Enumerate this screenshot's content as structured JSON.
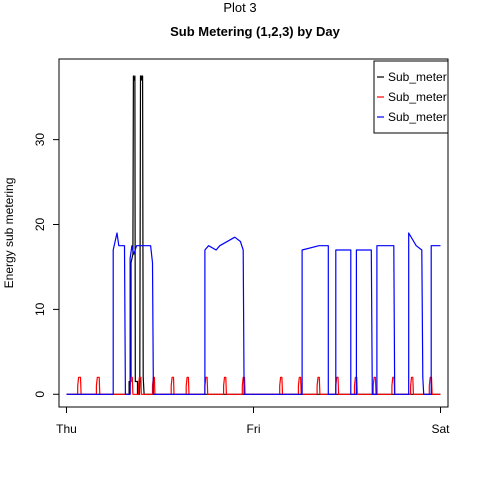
{
  "page": {
    "title": "Plot 3"
  },
  "chart_data": {
    "type": "line",
    "title": "Sub Metering (1,2,3) by Day",
    "xlabel": "",
    "ylabel": "Energy sub metering",
    "x_ticks": [
      {
        "x": 0,
        "label": "Thu"
      },
      {
        "x": 1,
        "label": "Fri"
      },
      {
        "x": 2,
        "label": "Sat"
      }
    ],
    "y_ticks": [
      0,
      10,
      20,
      30
    ],
    "xlim": [
      -0.04,
      2.04
    ],
    "ylim": [
      -1.5,
      39.5
    ],
    "grid": false,
    "legend": {
      "position": "top-right",
      "entries": [
        "Sub_meter",
        "Sub_meter",
        "Sub_meter"
      ]
    },
    "series": [
      {
        "color": "#000000",
        "points": [
          [
            0.0,
            0
          ],
          [
            0.335,
            0
          ],
          [
            0.335,
            1.5
          ],
          [
            0.345,
            1.5
          ],
          [
            0.345,
            15.5
          ],
          [
            0.355,
            16.5
          ],
          [
            0.358,
            37.5
          ],
          [
            0.362,
            37.0
          ],
          [
            0.366,
            37.5
          ],
          [
            0.368,
            1.5
          ],
          [
            0.38,
            1.5
          ],
          [
            0.38,
            0
          ],
          [
            0.39,
            0
          ],
          [
            0.392,
            1.5
          ],
          [
            0.396,
            37.5
          ],
          [
            0.4,
            37.5
          ],
          [
            0.403,
            37.0
          ],
          [
            0.407,
            37.5
          ],
          [
            0.41,
            2.0
          ],
          [
            0.415,
            0
          ],
          [
            2.0,
            0
          ]
        ]
      },
      {
        "color": "#ff0000",
        "points": [
          [
            0.0,
            0
          ],
          [
            0.06,
            0
          ],
          [
            0.06,
            1.0
          ],
          [
            0.065,
            2.0
          ],
          [
            0.075,
            2.0
          ],
          [
            0.078,
            0
          ],
          [
            0.16,
            0
          ],
          [
            0.16,
            1.0
          ],
          [
            0.165,
            2.0
          ],
          [
            0.175,
            2.0
          ],
          [
            0.178,
            0
          ],
          [
            0.34,
            0
          ],
          [
            0.34,
            1.0
          ],
          [
            0.345,
            2.0
          ],
          [
            0.352,
            2.0
          ],
          [
            0.355,
            0
          ],
          [
            0.385,
            0
          ],
          [
            0.385,
            1.0
          ],
          [
            0.39,
            2.0
          ],
          [
            0.398,
            2.0
          ],
          [
            0.4,
            0
          ],
          [
            0.46,
            0
          ],
          [
            0.46,
            1.0
          ],
          [
            0.465,
            2.0
          ],
          [
            0.47,
            2.0
          ],
          [
            0.473,
            0
          ],
          [
            0.56,
            0
          ],
          [
            0.56,
            1.0
          ],
          [
            0.565,
            2.0
          ],
          [
            0.572,
            2.0
          ],
          [
            0.575,
            0
          ],
          [
            0.64,
            0
          ],
          [
            0.64,
            1.0
          ],
          [
            0.645,
            2.0
          ],
          [
            0.652,
            2.0
          ],
          [
            0.655,
            0
          ],
          [
            0.74,
            0
          ],
          [
            0.74,
            1.0
          ],
          [
            0.745,
            2.0
          ],
          [
            0.752,
            2.0
          ],
          [
            0.755,
            0
          ],
          [
            0.84,
            0
          ],
          [
            0.84,
            1.0
          ],
          [
            0.845,
            2.0
          ],
          [
            0.852,
            2.0
          ],
          [
            0.855,
            0
          ],
          [
            0.94,
            0
          ],
          [
            0.94,
            1.0
          ],
          [
            0.945,
            2.0
          ],
          [
            0.952,
            2.0
          ],
          [
            0.955,
            0
          ],
          [
            1.14,
            0
          ],
          [
            1.14,
            1.0
          ],
          [
            1.145,
            2.0
          ],
          [
            1.152,
            2.0
          ],
          [
            1.155,
            0
          ],
          [
            1.24,
            0
          ],
          [
            1.24,
            1.0
          ],
          [
            1.245,
            2.0
          ],
          [
            1.252,
            2.0
          ],
          [
            1.255,
            0
          ],
          [
            1.34,
            0
          ],
          [
            1.34,
            1.0
          ],
          [
            1.345,
            2.0
          ],
          [
            1.352,
            2.0
          ],
          [
            1.355,
            0
          ],
          [
            1.44,
            0
          ],
          [
            1.44,
            1.0
          ],
          [
            1.445,
            2.0
          ],
          [
            1.452,
            2.0
          ],
          [
            1.455,
            0
          ],
          [
            1.54,
            0
          ],
          [
            1.54,
            1.0
          ],
          [
            1.545,
            2.0
          ],
          [
            1.552,
            2.0
          ],
          [
            1.555,
            0
          ],
          [
            1.64,
            0
          ],
          [
            1.64,
            1.0
          ],
          [
            1.645,
            2.0
          ],
          [
            1.652,
            2.0
          ],
          [
            1.655,
            0
          ],
          [
            1.74,
            0
          ],
          [
            1.74,
            1.0
          ],
          [
            1.745,
            2.0
          ],
          [
            1.752,
            2.0
          ],
          [
            1.755,
            0
          ],
          [
            1.84,
            0
          ],
          [
            1.84,
            1.0
          ],
          [
            1.845,
            2.0
          ],
          [
            1.852,
            2.0
          ],
          [
            1.855,
            0
          ],
          [
            1.94,
            0
          ],
          [
            1.94,
            1.0
          ],
          [
            1.945,
            2.0
          ],
          [
            1.952,
            2.0
          ],
          [
            1.955,
            0
          ],
          [
            2.0,
            0
          ]
        ]
      },
      {
        "color": "#0000ff",
        "points": [
          [
            0.0,
            0
          ],
          [
            0.25,
            0
          ],
          [
            0.25,
            17.0
          ],
          [
            0.27,
            19.0
          ],
          [
            0.28,
            17.5
          ],
          [
            0.31,
            17.5
          ],
          [
            0.315,
            0
          ],
          [
            0.34,
            0
          ],
          [
            0.34,
            16.0
          ],
          [
            0.35,
            17.5
          ],
          [
            0.36,
            16.5
          ],
          [
            0.375,
            17.5
          ],
          [
            0.45,
            17.5
          ],
          [
            0.46,
            15.5
          ],
          [
            0.465,
            0
          ],
          [
            0.74,
            0
          ],
          [
            0.74,
            17.0
          ],
          [
            0.76,
            17.5
          ],
          [
            0.8,
            17.0
          ],
          [
            0.82,
            17.5
          ],
          [
            0.9,
            18.5
          ],
          [
            0.93,
            18.0
          ],
          [
            0.945,
            17.0
          ],
          [
            0.95,
            0
          ],
          [
            1.26,
            0
          ],
          [
            1.26,
            17.0
          ],
          [
            1.35,
            17.5
          ],
          [
            1.4,
            17.5
          ],
          [
            1.4,
            0
          ],
          [
            1.44,
            0
          ],
          [
            1.44,
            17.0
          ],
          [
            1.52,
            17.0
          ],
          [
            1.52,
            0
          ],
          [
            1.55,
            0
          ],
          [
            1.55,
            17.0
          ],
          [
            1.63,
            17.0
          ],
          [
            1.635,
            0
          ],
          [
            1.66,
            0
          ],
          [
            1.66,
            17.5
          ],
          [
            1.75,
            17.5
          ],
          [
            1.755,
            0
          ],
          [
            1.83,
            0
          ],
          [
            1.83,
            19.0
          ],
          [
            1.87,
            17.5
          ],
          [
            1.9,
            17.0
          ],
          [
            1.905,
            2.0
          ],
          [
            1.91,
            0
          ],
          [
            1.95,
            0
          ],
          [
            1.95,
            17.5
          ],
          [
            2.0,
            17.5
          ]
        ]
      }
    ]
  }
}
